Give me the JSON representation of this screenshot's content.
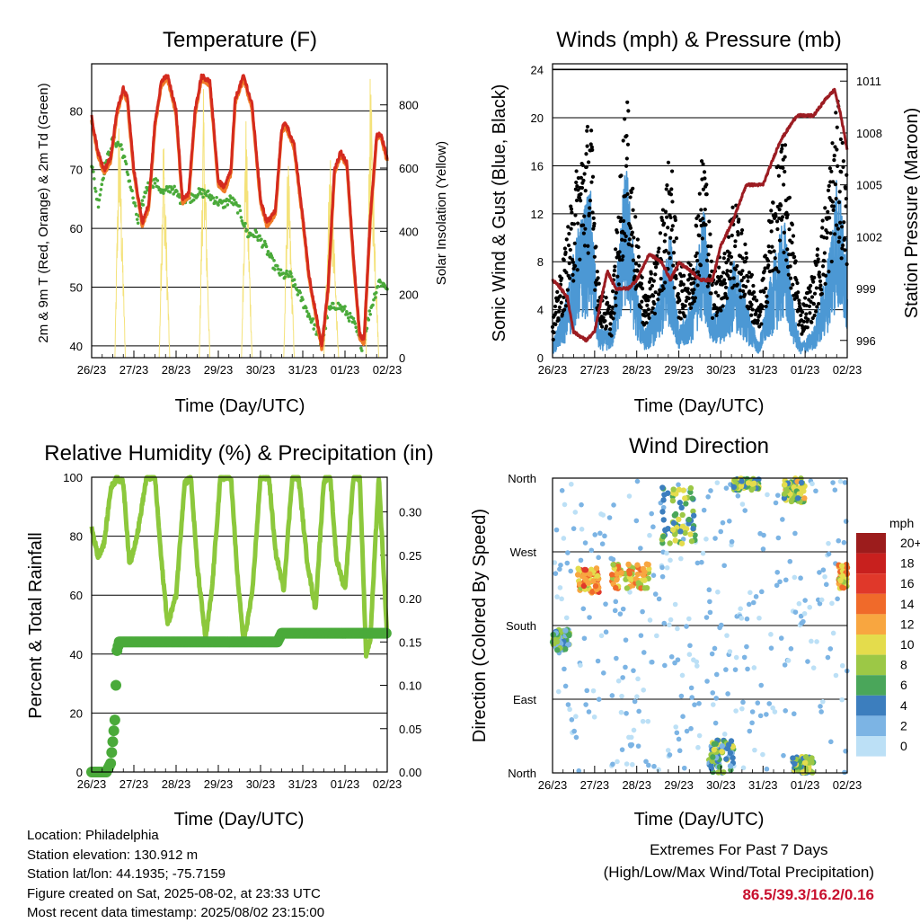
{
  "colors": {
    "temp2m": "#d42a1e",
    "temp9m": "#f07a28",
    "dewpoint": "#4aaa3a",
    "solar": "#f4e27a",
    "wind": "#4c98d4",
    "gust": "#000000",
    "pressure": "#9c1c22",
    "rh": "#8cc83c",
    "precip": "#4aaa3a"
  },
  "x_ticks": [
    "26/23",
    "27/23",
    "28/23",
    "29/23",
    "30/23",
    "31/23",
    "01/23",
    "02/23"
  ],
  "panels": {
    "temperature": {
      "title": "Temperature (F)",
      "xlabel": "Time (Day/UTC)",
      "ylabel_left": "2m & 9m T (Red, Orange) & 2m Td (Green)",
      "ylabel_right": "Solar Insolation (Yellow)",
      "left_ticks": [
        "40",
        "50",
        "60",
        "70",
        "80"
      ],
      "right_ticks": [
        "0",
        "200",
        "400",
        "600",
        "800"
      ]
    },
    "winds": {
      "title": "Winds (mph) & Pressure (mb)",
      "xlabel": "Time (Day/UTC)",
      "ylabel_left": "Sonic Wind & Gust (Blue, Black)",
      "ylabel_right": "Station Pressure (Maroon)",
      "left_ticks": [
        "0",
        "4",
        "8",
        "12",
        "16",
        "20",
        "24"
      ],
      "right_ticks": [
        "996",
        "999",
        "1002",
        "1005",
        "1008",
        "1011"
      ]
    },
    "humidity": {
      "title": "Relative Humidity (%) & Precipitation (in)",
      "xlabel": "Time (Day/UTC)",
      "ylabel_left": "Percent & Total Rainfall",
      "left_ticks": [
        "0",
        "20",
        "40",
        "60",
        "80",
        "100"
      ],
      "right_ticks": [
        "0.00",
        "0.05",
        "0.10",
        "0.15",
        "0.20",
        "0.25",
        "0.30"
      ]
    },
    "direction": {
      "title": "Wind Direction",
      "xlabel": "Time (Day/UTC)",
      "ylabel_left": "Direction (Colored By Speed)",
      "left_ticks": [
        "North",
        "East",
        "South",
        "West",
        "North"
      ],
      "legend_title": "mph",
      "legend_labels": [
        "20+",
        "18",
        "16",
        "14",
        "12",
        "10",
        "8",
        "6",
        "4",
        "2",
        "0"
      ],
      "legend_colors": [
        "#9c1c1c",
        "#c8201e",
        "#e0382a",
        "#f06a2a",
        "#f8a640",
        "#e4dc4c",
        "#9cc846",
        "#4aa65a",
        "#3c7ebe",
        "#7cb4e4",
        "#bce0f6"
      ]
    }
  },
  "info": {
    "location": "Location: Philadelphia",
    "elevation": "Station elevation: 130.912 m",
    "latlon": "Station lat/lon: 44.1935; -75.7159",
    "created": "Figure created on Sat, 2025-08-02, at 23:33 UTC",
    "recent": "Most recent data timestamp: 2025/08/02 23:15:00"
  },
  "extremes": {
    "line1": "Extremes For Past 7 Days",
    "line2": "(High/Low/Max Wind/Total Precipitation)",
    "values": "86.5/39.3/16.2/0.16"
  },
  "chart_data": [
    {
      "type": "line",
      "title": "Temperature (F)",
      "xlabel": "Time (Day/UTC)",
      "ylabel": "2m & 9m T (Red, Orange) & 2m Td (Green)",
      "y2label": "Solar Insolation (Yellow)",
      "x_unit": "days since 26/23 UTC",
      "xlim": [
        0,
        7
      ],
      "ylim": [
        38,
        88
      ],
      "y2lim": [
        0,
        930
      ],
      "series": [
        {
          "name": "2m T",
          "color": "#d42a1e",
          "x": [
            0,
            0.15,
            0.3,
            0.45,
            0.6,
            0.75,
            0.85,
            1.0,
            1.2,
            1.35,
            1.5,
            1.65,
            1.8,
            2.0,
            2.15,
            2.3,
            2.45,
            2.6,
            2.8,
            3.0,
            3.15,
            3.3,
            3.4,
            3.6,
            3.8,
            4.0,
            4.15,
            4.35,
            4.5,
            4.6,
            4.8,
            5.0,
            5.15,
            5.3,
            5.45,
            5.6,
            5.75,
            5.9,
            6.05,
            6.2,
            6.35,
            6.45,
            6.6,
            6.75,
            6.85,
            7.0
          ],
          "y": [
            79,
            73,
            70,
            72,
            80,
            84,
            82,
            70,
            61,
            64,
            78,
            85,
            86,
            80,
            65,
            66,
            80,
            86,
            85,
            68,
            67,
            70,
            82,
            86,
            81,
            65,
            61,
            63,
            77,
            78,
            74,
            62,
            52,
            46,
            40,
            50,
            70,
            73,
            71,
            55,
            42,
            41,
            62,
            76,
            76,
            72
          ]
        },
        {
          "name": "Td",
          "color": "#4aaa3a",
          "x": [
            0,
            0.15,
            0.3,
            0.5,
            0.7,
            0.9,
            1.1,
            1.3,
            1.5,
            1.7,
            1.9,
            2.1,
            2.3,
            2.5,
            2.7,
            2.9,
            3.1,
            3.3,
            3.5,
            3.7,
            3.9,
            4.1,
            4.3,
            4.5,
            4.7,
            4.9,
            5.1,
            5.3,
            5.45,
            5.6,
            5.8,
            6.0,
            6.2,
            6.4,
            6.6,
            6.8,
            7.0
          ],
          "y": [
            71,
            64,
            70,
            75,
            74,
            68,
            61,
            67,
            68,
            66,
            67,
            65,
            65,
            66,
            66,
            65,
            64,
            65,
            63,
            59,
            59,
            57,
            54,
            52,
            52,
            49,
            46,
            43,
            40,
            46,
            47,
            46,
            44,
            40,
            46,
            51,
            50
          ]
        },
        {
          "name": "Solar",
          "color": "#f4e27a",
          "axis": "right",
          "x": [
            0.55,
            0.65,
            0.8,
            1.6,
            1.7,
            1.85,
            2.55,
            2.65,
            2.8,
            3.55,
            3.65,
            3.8,
            4.55,
            4.65,
            4.8,
            5.5,
            5.65,
            5.85,
            6.5,
            6.6,
            6.8
          ],
          "y": [
            0,
            820,
            0,
            0,
            760,
            0,
            0,
            850,
            0,
            0,
            800,
            0,
            0,
            680,
            0,
            0,
            700,
            0,
            0,
            930,
            0
          ]
        }
      ]
    },
    {
      "type": "line",
      "title": "Winds (mph) & Pressure (mb)",
      "xlabel": "Time (Day/UTC)",
      "ylabel": "Sonic Wind & Gust (Blue, Black)",
      "y2label": "Station Pressure (Maroon)",
      "x_unit": "days since 26/23 UTC",
      "xlim": [
        0,
        7
      ],
      "ylim": [
        0,
        24.5
      ],
      "y2lim": [
        995,
        1012
      ],
      "series": [
        {
          "name": "Gust",
          "color": "#000000",
          "x": [
            0,
            0.3,
            0.6,
            0.9,
            1.1,
            1.4,
            1.75,
            2.0,
            2.2,
            2.5,
            2.8,
            3.0,
            3.3,
            3.6,
            3.8,
            4.1,
            4.3,
            4.6,
            4.9,
            5.2,
            5.5,
            5.75,
            5.9,
            6.2,
            6.5,
            6.75,
            7.0
          ],
          "y": [
            3,
            9,
            16,
            20,
            6,
            4,
            22,
            10,
            5,
            9,
            17,
            7,
            8,
            18,
            7,
            9,
            13,
            9,
            4,
            13,
            18,
            9,
            4,
            7,
            13,
            21,
            15
          ]
        },
        {
          "name": "Wind",
          "color": "#4c98d4",
          "x": [
            0,
            0.3,
            0.6,
            0.9,
            1.1,
            1.4,
            1.75,
            2.0,
            2.2,
            2.5,
            2.8,
            3.0,
            3.3,
            3.6,
            3.8,
            4.1,
            4.3,
            4.6,
            4.9,
            5.2,
            5.5,
            5.75,
            5.9,
            6.2,
            6.5,
            6.75,
            7.0
          ],
          "y": [
            1,
            4,
            9,
            12,
            2,
            2,
            14,
            5,
            2,
            4,
            9,
            2,
            4,
            11,
            3,
            4,
            7,
            4,
            1,
            6,
            10,
            3,
            1,
            2,
            6,
            13,
            8
          ]
        },
        {
          "name": "Pressure",
          "color": "#9c1c22",
          "axis": "right",
          "x": [
            0,
            0.2,
            0.35,
            0.5,
            0.8,
            1.0,
            1.3,
            1.5,
            1.8,
            2.0,
            2.3,
            2.6,
            2.8,
            3.0,
            3.3,
            3.5,
            3.8,
            4.0,
            4.3,
            4.6,
            5.0,
            5.4,
            5.8,
            6.2,
            6.5,
            6.7,
            6.85,
            7.0
          ],
          "y": [
            999.5,
            999.0,
            998.5,
            996.5,
            996.0,
            996.5,
            1000.0,
            999.0,
            999.0,
            999.5,
            1001.0,
            1000.5,
            999.5,
            1000.5,
            1000.0,
            999.5,
            999.5,
            1001.5,
            1003.0,
            1005.0,
            1005.0,
            1007.5,
            1009.0,
            1009.0,
            1010.0,
            1010.5,
            1009.0,
            1007.0
          ]
        }
      ]
    },
    {
      "type": "line",
      "title": "Relative Humidity (%) & Precipitation (in)",
      "xlabel": "Time (Day/UTC)",
      "ylabel": "Percent & Total Rainfall",
      "x_unit": "days since 26/23 UTC",
      "xlim": [
        0,
        7
      ],
      "ylim": [
        0,
        100
      ],
      "y2lim": [
        0,
        0.34
      ],
      "series": [
        {
          "name": "RH",
          "color": "#8cc83c",
          "x": [
            0,
            0.15,
            0.3,
            0.45,
            0.6,
            0.75,
            0.9,
            1.1,
            1.3,
            1.5,
            1.65,
            1.8,
            2.0,
            2.2,
            2.35,
            2.5,
            2.7,
            2.85,
            3.05,
            3.3,
            3.45,
            3.6,
            3.8,
            4.0,
            4.2,
            4.35,
            4.55,
            4.75,
            4.9,
            5.1,
            5.3,
            5.5,
            5.65,
            5.8,
            6.0,
            6.2,
            6.35,
            6.5,
            6.6,
            6.8,
            7.0
          ],
          "y": [
            83,
            73,
            78,
            96,
            100,
            98,
            70,
            82,
            100,
            100,
            72,
            50,
            60,
            98,
            100,
            70,
            45,
            62,
            100,
            100,
            67,
            44,
            60,
            100,
            100,
            75,
            62,
            100,
            100,
            72,
            55,
            99,
            100,
            72,
            62,
            100,
            100,
            40,
            45,
            100,
            45
          ]
        },
        {
          "name": "Precipitation",
          "color": "#4aaa3a",
          "axis": "right",
          "x": [
            0,
            0.35,
            0.45,
            0.55,
            0.6,
            0.65,
            1.0,
            2.0,
            3.0,
            4.0,
            4.4,
            4.5,
            5.0,
            6.0,
            7.0
          ],
          "y": [
            0.0,
            0.0,
            0.01,
            0.06,
            0.14,
            0.15,
            0.15,
            0.15,
            0.15,
            0.15,
            0.15,
            0.16,
            0.16,
            0.16,
            0.16
          ]
        }
      ]
    },
    {
      "type": "scatter",
      "title": "Wind Direction",
      "xlabel": "Time (Day/UTC)",
      "ylabel": "Direction (Colored By Speed)",
      "x_unit": "days since 26/23 UTC",
      "xlim": [
        0,
        7
      ],
      "ylim": [
        0,
        360
      ],
      "legend_title": "mph",
      "clusters": [
        {
          "x": [
            0,
            0.4
          ],
          "dir": [
            150,
            175
          ],
          "speed": 5
        },
        {
          "x": [
            0.6,
            1.1
          ],
          "dir": [
            220,
            250
          ],
          "speed": 12
        },
        {
          "x": [
            1.4,
            2.3
          ],
          "dir": [
            225,
            255
          ],
          "speed": 11
        },
        {
          "x": [
            2.6,
            3.4
          ],
          "dir": [
            280,
            350
          ],
          "speed": 7
        },
        {
          "x": [
            3.7,
            4.3
          ],
          "dir": [
            0,
            40
          ],
          "speed": 6
        },
        {
          "x": [
            4.3,
            4.9
          ],
          "dir": [
            345,
            360
          ],
          "speed": 7
        },
        {
          "x": [
            5.5,
            6.0
          ],
          "dir": [
            330,
            360
          ],
          "speed": 8
        },
        {
          "x": [
            5.7,
            6.2
          ],
          "dir": [
            0,
            20
          ],
          "speed": 7
        },
        {
          "x": [
            6.8,
            7.0
          ],
          "dir": [
            225,
            255
          ],
          "speed": 11
        }
      ]
    }
  ]
}
